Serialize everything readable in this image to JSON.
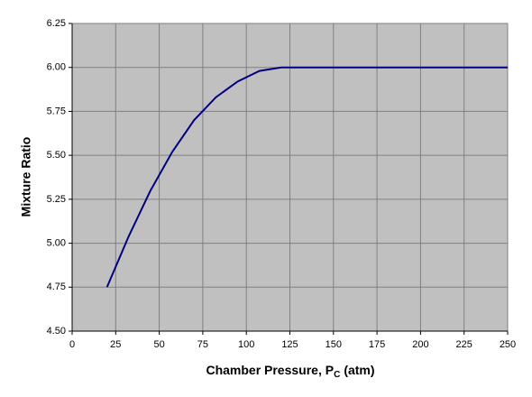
{
  "chart_data": {
    "type": "line",
    "xlabel": {
      "text": "Chamber Pressure, P",
      "sub": "C",
      "suffix": "(atm)"
    },
    "ylabel": "Mixture Ratio",
    "x": [
      20,
      32.5,
      45,
      57.5,
      70,
      82.5,
      95,
      107.5,
      120,
      250
    ],
    "series": [
      {
        "name": "Mixture Ratio",
        "color": "#000080",
        "values": [
          4.75,
          5.04,
          5.3,
          5.52,
          5.7,
          5.83,
          5.92,
          5.98,
          6.0,
          6.0
        ]
      }
    ],
    "xlim": [
      0,
      250
    ],
    "xticks": [
      0,
      25,
      50,
      75,
      100,
      125,
      150,
      175,
      200,
      225,
      250
    ],
    "ylim": [
      4.5,
      6.25
    ],
    "yticks": [
      {
        "value": 4.5,
        "label": "4.50"
      },
      4.75,
      {
        "value": 5,
        "label": "5.00"
      },
      5.25,
      {
        "value": 5.5,
        "label": "5.50"
      },
      5.75,
      {
        "value": 6,
        "label": "6.00"
      },
      6.25
    ],
    "grid": true,
    "plot_background": "#c0c0c0",
    "grid_color": "#808080"
  }
}
